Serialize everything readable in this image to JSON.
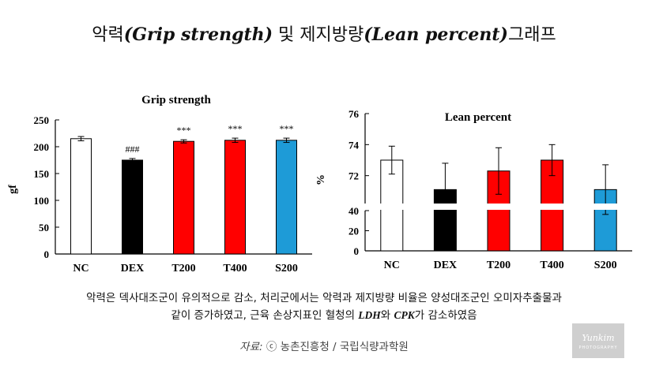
{
  "page_title": {
    "part1": "악력",
    "part2": "(Grip strength)",
    "part3": " 및 제지방량",
    "part4": "(Lean percent)",
    "part5": "그래프"
  },
  "chart_data": [
    {
      "type": "bar",
      "title": "Grip strength",
      "xlabel": "",
      "ylabel": "gf",
      "ylim": [
        0,
        250
      ],
      "yticks": [
        0,
        50,
        100,
        150,
        200,
        250
      ],
      "categories": [
        "NC",
        "DEX",
        "T200",
        "T400",
        "S200"
      ],
      "values": [
        215,
        175,
        210,
        212,
        212
      ],
      "errors": [
        4,
        3,
        3,
        4,
        4
      ],
      "colors": [
        "#ffffff",
        "#000000",
        "#ff0000",
        "#ff0000",
        "#1e9bd7"
      ],
      "annotations": [
        "",
        "###",
        "***",
        "***",
        "***"
      ]
    },
    {
      "type": "bar",
      "title": "Lean percent",
      "xlabel": "",
      "ylabel": "%",
      "axis_break": [
        40,
        70
      ],
      "yticks_upper": [
        72,
        74,
        76
      ],
      "yticks_lower": [
        0,
        20,
        40
      ],
      "categories": [
        "NC",
        "DEX",
        "T200",
        "T400",
        "S200"
      ],
      "values": [
        73.0,
        71.1,
        72.3,
        73.0,
        71.1
      ],
      "errors": [
        0.9,
        1.7,
        1.5,
        1.0,
        1.6
      ],
      "colors": [
        "#ffffff",
        "#000000",
        "#ff0000",
        "#ff0000",
        "#1e9bd7"
      ]
    }
  ],
  "caption": {
    "line1": "악력은 덱사대조군이 유의적으로 감소, 처리군에서는 악력과 제지방량 비율은 양성대조군인 오미자추출물과",
    "line2a": "같이 증가하였고, 근육 손상지표인 혈청의 ",
    "ldh": "LDH",
    "line2b": "와 ",
    "cpk": "CPK",
    "line2c": "가 감소하였음"
  },
  "source": {
    "label": "자료:",
    "symbol": "ⓒ",
    "text": " 농촌진흥청 / 국립식량과학원"
  },
  "logo": {
    "name": "Yunkim",
    "tag": "PHOTOGRAPHY"
  }
}
